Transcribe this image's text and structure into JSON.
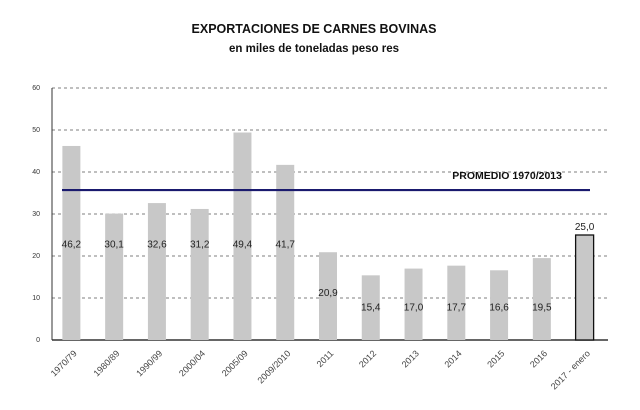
{
  "chart_data": {
    "type": "bar",
    "title": "EXPORTACIONES DE CARNES BOVINAS",
    "subtitle": "en miles de toneladas peso res",
    "xlabel": "",
    "ylabel": "",
    "ylim": [
      0,
      60
    ],
    "yticks": [
      0,
      10,
      20,
      30,
      40,
      50,
      60
    ],
    "grid": true,
    "categories": [
      "1970/79",
      "1980/89",
      "1990/99",
      "2000/04",
      "2005/09",
      "2009/2010",
      "2011",
      "2012",
      "2013",
      "2014",
      "2015",
      "2016",
      "2017 - enero"
    ],
    "values": [
      46.2,
      30.1,
      32.6,
      31.2,
      49.4,
      41.7,
      20.9,
      15.4,
      17.0,
      17.7,
      16.6,
      19.5,
      25.0
    ],
    "value_labels": [
      "46,2",
      "30,1",
      "32,6",
      "31,2",
      "49,4",
      "41,7",
      "20,9",
      "15,4",
      "17,0",
      "17,7",
      "16,6",
      "19,5",
      "25,0"
    ],
    "average": {
      "label": "PROMEDIO 1970/2013",
      "value": 35.7,
      "color": "#1a1a6e"
    },
    "colors": {
      "bar": "#c8c8c8",
      "highlight": "#c8c8c8",
      "highlight_stroke": "#111111"
    }
  }
}
